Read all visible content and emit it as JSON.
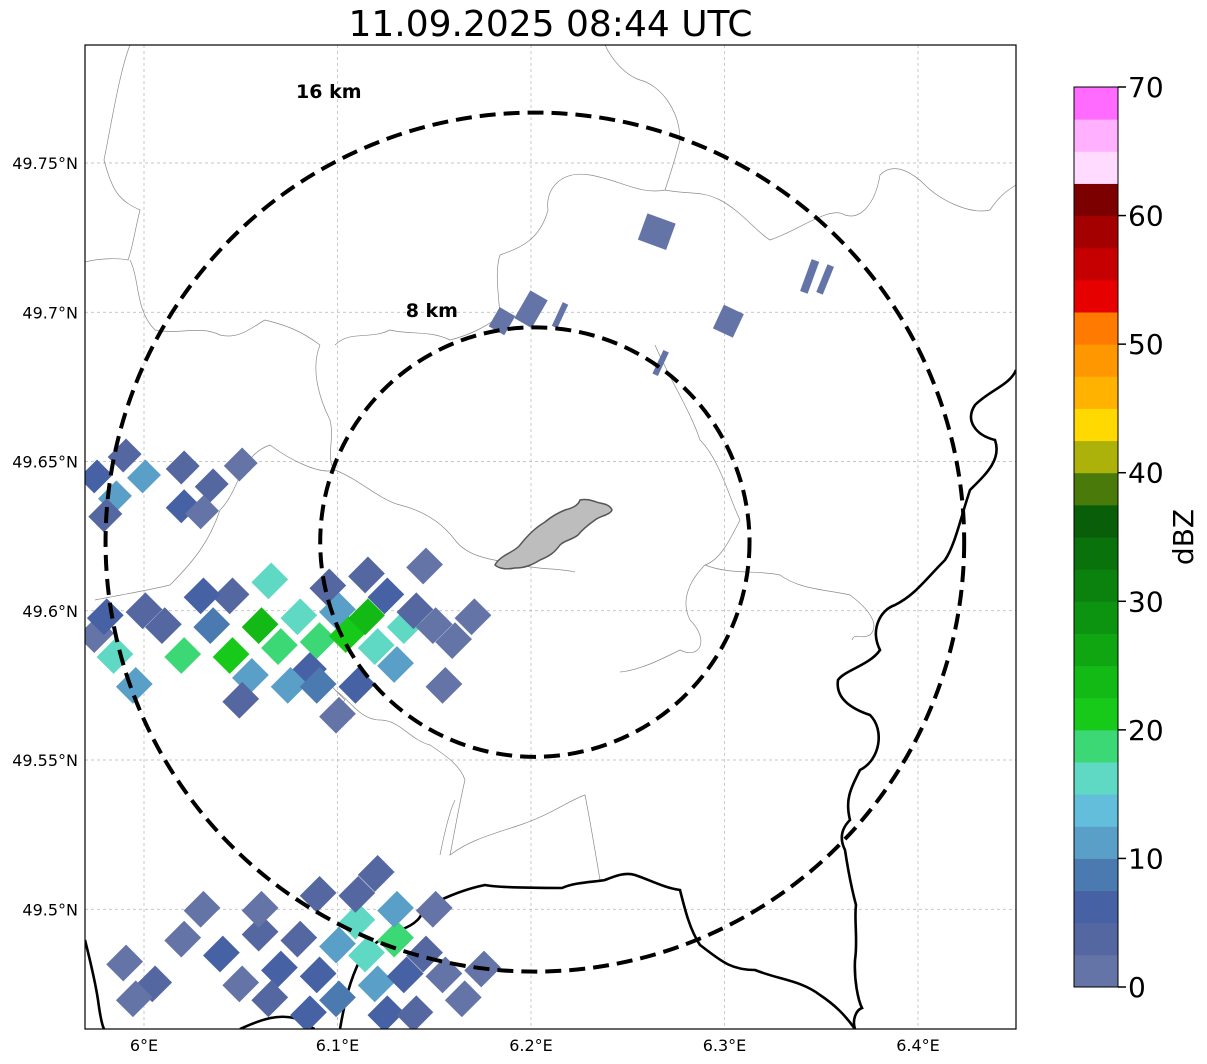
{
  "title": "11.09.2025 08:44 UTC",
  "map": {
    "lat_labels": [
      "49.75°N",
      "49.7°N",
      "49.65°N",
      "49.6°N",
      "49.55°N",
      "49.5°N"
    ],
    "lon_labels": [
      "6°E",
      "6.1°E",
      "6.2°E",
      "6.3°E",
      "6.4°E"
    ],
    "lat_ticks": [
      49.75,
      49.7,
      49.65,
      49.6,
      49.55,
      49.5
    ],
    "lon_ticks": [
      6.0,
      6.1,
      6.2,
      6.3,
      6.4
    ],
    "extent": {
      "lon_min": 5.97,
      "lon_max": 6.45,
      "lat_min": 49.46,
      "lat_max": 49.79
    },
    "radar_center": {
      "lon": 6.202,
      "lat": 49.623
    },
    "rings": [
      {
        "label": "8 km",
        "radius_km": 8
      },
      {
        "label": "16 km",
        "radius_km": 16
      }
    ],
    "center_area": "Luxembourg city (grey polygon)"
  },
  "colorbar": {
    "label": "dBZ",
    "tick_labels": [
      "0",
      "10",
      "20",
      "30",
      "40",
      "50",
      "60",
      "70"
    ],
    "min": 0,
    "max": 70,
    "step": 2.5,
    "colors": [
      "#6474a6",
      "#5567a1",
      "#4662a4",
      "#4a7ab0",
      "#599fc7",
      "#63bedc",
      "#5fd8c4",
      "#3dd876",
      "#17c919",
      "#13b915",
      "#0fa612",
      "#0c9410",
      "#0a820d",
      "#0a720b",
      "#085e09",
      "#4a7a0a",
      "#acb20a",
      "#ffd900",
      "#ffb300",
      "#ff9800",
      "#ff7a00",
      "#e60000",
      "#c60000",
      "#a50000",
      "#7d0000",
      "#ffdcff",
      "#ffb0ff",
      "#ff6aff",
      "#ee30ee"
    ]
  },
  "colors": {
    "rings": "#000000",
    "grid": "#b4b4b4",
    "borders": "#000000",
    "admin_lines": "#8c8c8c",
    "city_fill": "#bdbdbd"
  }
}
